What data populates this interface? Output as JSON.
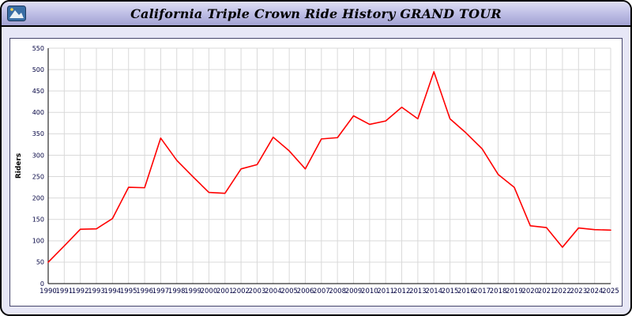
{
  "header": {
    "title": "California Triple Crown Ride History GRAND TOUR",
    "logo_icon": "mountain-road-logo"
  },
  "colors": {
    "line": "#ff0000",
    "titlebar_top": "#dfdff4",
    "titlebar_bottom": "#a2a2d2",
    "window_border": "#000000",
    "body_background": "#e7e7f6",
    "plot_background": "#ffffff",
    "grid": "#d9d9d9",
    "axis": "#000000",
    "tick_text": "#000040"
  },
  "chart_data": {
    "type": "line",
    "title": "California Triple Crown Ride History GRAND TOUR",
    "xlabel": "",
    "ylabel": "Riders",
    "ylim": [
      0,
      550
    ],
    "ytick_step": 50,
    "grid": true,
    "legend": "none",
    "x": [
      1990,
      1991,
      1992,
      1993,
      1994,
      1995,
      1996,
      1997,
      1998,
      1999,
      2000,
      2001,
      2002,
      2003,
      2004,
      2005,
      2006,
      2007,
      2008,
      2009,
      2010,
      2011,
      2012,
      2013,
      2014,
      2015,
      2016,
      2017,
      2018,
      2019,
      2020,
      2021,
      2022,
      2023,
      2024,
      2025
    ],
    "series": [
      {
        "name": "Riders",
        "color": "#ff0000",
        "values": [
          50,
          88,
          127,
          128,
          152,
          225,
          224,
          340,
          288,
          250,
          213,
          211,
          268,
          278,
          342,
          310,
          268,
          338,
          341,
          392,
          372,
          380,
          412,
          385,
          495,
          385,
          352,
          315,
          255,
          225,
          135,
          131,
          85,
          130,
          126,
          125
        ]
      }
    ]
  }
}
